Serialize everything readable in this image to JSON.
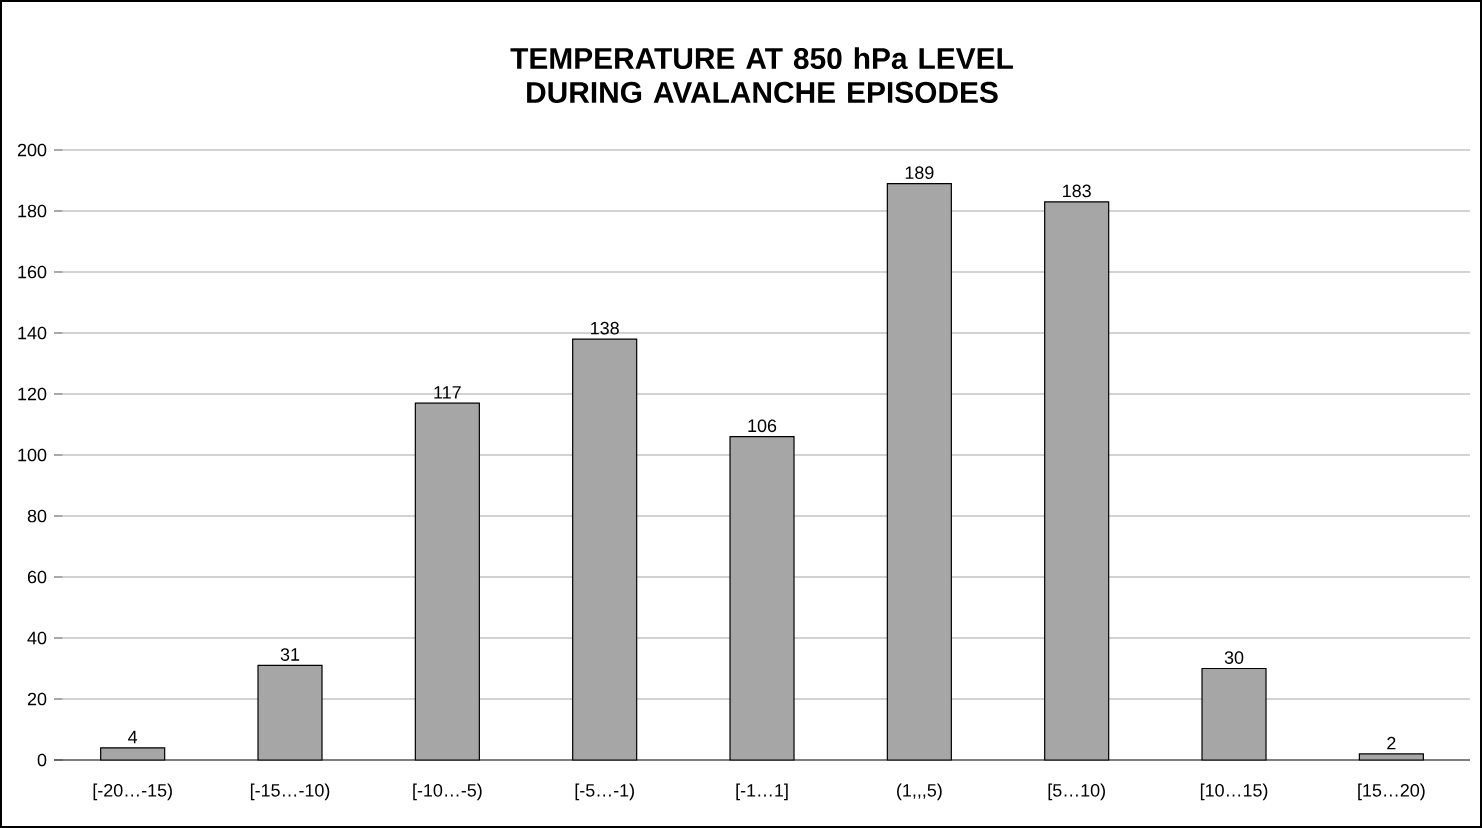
{
  "chart_data": {
    "type": "bar",
    "title": "TEMPERATURE AT 850 hPa LEVEL DURING AVALANCHE EPISODES",
    "categories": [
      "[-20…-15)",
      "[-15…-10)",
      "[-10…-5)",
      "[-5…-1)",
      "[-1…1]",
      "(1,,,5)",
      "[5…10)",
      "[10…15)",
      "[15…20)"
    ],
    "values": [
      4,
      31,
      117,
      138,
      106,
      189,
      183,
      30,
      2
    ],
    "color": "#a6a6a6",
    "ylim": [
      0,
      200
    ],
    "yticks": [
      0,
      20,
      40,
      60,
      80,
      100,
      120,
      140,
      160,
      180,
      200
    ],
    "grid": "y",
    "data_labels": true
  }
}
